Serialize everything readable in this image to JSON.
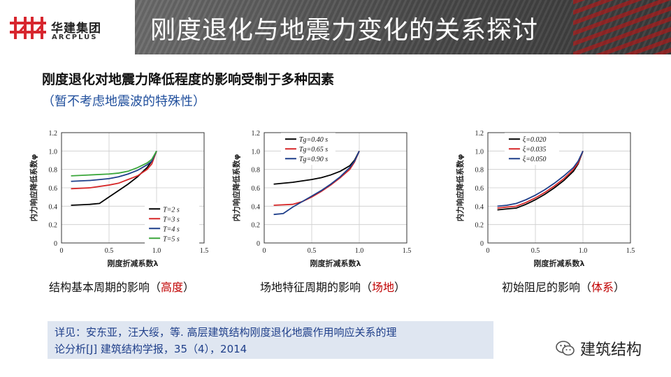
{
  "header": {
    "logo_cn": "华建集团",
    "logo_en": "ARCPLUS",
    "title": "刚度退化与地震力变化的关系探讨",
    "colors": {
      "brand_red": "#d7262e",
      "title_band": "#4a4a4a"
    }
  },
  "subtitle": {
    "main": "刚度退化对地震力降低程度的影响受制于多种因素",
    "note": "（暂不考虑地震波的特殊性）"
  },
  "captions": [
    {
      "pre": "结构基本周期的影响（",
      "hl": "高度",
      "post": "）"
    },
    {
      "pre": "场地特征周期的影响（",
      "hl": "场地",
      "post": "）"
    },
    {
      "pre": "初始阻尼的影响（",
      "hl": "体系",
      "post": "）"
    }
  ],
  "reference": {
    "line1": "详见：安东亚，汪大绥，等. 高层建筑结构刚度退化地震作用响应关系的理",
    "line2": "论分析[J] 建筑结构学报，35（4），2014"
  },
  "watermark": {
    "text": "建筑结构",
    "icon": "wechat-icon"
  },
  "chart_data": [
    {
      "type": "line",
      "xlabel": "刚度折减系数λ",
      "ylabel": "内力响应降低系数φ",
      "xlim": [
        0,
        1.5
      ],
      "ylim": [
        0,
        1.2
      ],
      "xticks": [
        "0",
        "0.5",
        "1.0",
        "1.5"
      ],
      "yticks": [
        "0",
        "0.2",
        "0.4",
        "0.6",
        "0.8",
        "1.0",
        "1.2"
      ],
      "grid": true,
      "legend_position": "lower-right",
      "series": [
        {
          "name": "T=2 s",
          "color": "#000000",
          "x": [
            0.1,
            0.3,
            0.4,
            0.5,
            0.6,
            0.7,
            0.8,
            0.9,
            0.95,
            1.0
          ],
          "y": [
            0.41,
            0.42,
            0.43,
            0.5,
            0.57,
            0.64,
            0.72,
            0.82,
            0.89,
            1.0
          ]
        },
        {
          "name": "T=3 s",
          "color": "#d62728",
          "x": [
            0.1,
            0.3,
            0.5,
            0.6,
            0.7,
            0.8,
            0.9,
            0.95,
            1.0
          ],
          "y": [
            0.59,
            0.6,
            0.63,
            0.65,
            0.69,
            0.73,
            0.8,
            0.86,
            1.0
          ]
        },
        {
          "name": "T=4 s",
          "color": "#1f3f8a",
          "x": [
            0.1,
            0.3,
            0.5,
            0.6,
            0.7,
            0.8,
            0.9,
            0.95,
            1.0
          ],
          "y": [
            0.67,
            0.68,
            0.7,
            0.72,
            0.75,
            0.79,
            0.85,
            0.89,
            1.0
          ]
        },
        {
          "name": "T=5 s",
          "color": "#3aa63a",
          "x": [
            0.1,
            0.3,
            0.5,
            0.6,
            0.7,
            0.8,
            0.9,
            0.95,
            1.0
          ],
          "y": [
            0.73,
            0.74,
            0.75,
            0.76,
            0.78,
            0.82,
            0.87,
            0.91,
            1.0
          ]
        }
      ]
    },
    {
      "type": "line",
      "xlabel": "刚度折减系数λ",
      "ylabel": "内力响应降低系数φ",
      "xlim": [
        0,
        1.5
      ],
      "ylim": [
        0,
        1.2
      ],
      "xticks": [
        "0",
        "0.5",
        "1.0",
        "1.5"
      ],
      "yticks": [
        "0",
        "0.2",
        "0.4",
        "0.6",
        "0.8",
        "1.0",
        "1.2"
      ],
      "grid": true,
      "legend_position": "top-left",
      "series": [
        {
          "name": "Tg=0.40 s",
          "color": "#000000",
          "x": [
            0.1,
            0.3,
            0.5,
            0.6,
            0.7,
            0.8,
            0.9,
            0.95,
            1.0
          ],
          "y": [
            0.64,
            0.66,
            0.69,
            0.71,
            0.74,
            0.78,
            0.84,
            0.9,
            1.0
          ]
        },
        {
          "name": "Tg=0.65 s",
          "color": "#d62728",
          "x": [
            0.1,
            0.3,
            0.4,
            0.5,
            0.6,
            0.7,
            0.8,
            0.9,
            0.95,
            1.0
          ],
          "y": [
            0.41,
            0.42,
            0.45,
            0.5,
            0.56,
            0.63,
            0.71,
            0.8,
            0.88,
            1.0
          ]
        },
        {
          "name": "Tg=0.90 s",
          "color": "#1f3f8a",
          "x": [
            0.1,
            0.2,
            0.3,
            0.4,
            0.5,
            0.6,
            0.7,
            0.8,
            0.9,
            0.95,
            1.0
          ],
          "y": [
            0.31,
            0.32,
            0.39,
            0.45,
            0.51,
            0.57,
            0.64,
            0.72,
            0.82,
            0.89,
            1.0
          ]
        }
      ]
    },
    {
      "type": "line",
      "xlabel": "刚度折减系数λ",
      "ylabel": "内力响应降低系数φ",
      "xlim": [
        0,
        1.5
      ],
      "ylim": [
        0,
        1.2
      ],
      "xticks": [
        "0",
        "0.5",
        "1.0",
        "1.5"
      ],
      "yticks": [
        "0",
        "0.2",
        "0.4",
        "0.6",
        "0.8",
        "1.0",
        "1.2"
      ],
      "grid": true,
      "legend_position": "top-left",
      "series": [
        {
          "name": "ξ=0.020",
          "color": "#000000",
          "x": [
            0.1,
            0.2,
            0.3,
            0.4,
            0.5,
            0.6,
            0.7,
            0.8,
            0.9,
            0.95,
            1.0
          ],
          "y": [
            0.36,
            0.37,
            0.38,
            0.42,
            0.47,
            0.53,
            0.6,
            0.68,
            0.78,
            0.86,
            1.0
          ]
        },
        {
          "name": "ξ=0.035",
          "color": "#d62728",
          "x": [
            0.1,
            0.2,
            0.3,
            0.4,
            0.5,
            0.6,
            0.7,
            0.8,
            0.9,
            0.95,
            1.0
          ],
          "y": [
            0.38,
            0.39,
            0.4,
            0.44,
            0.49,
            0.55,
            0.62,
            0.7,
            0.8,
            0.87,
            1.0
          ]
        },
        {
          "name": "ξ=0.050",
          "color": "#1f3f8a",
          "x": [
            0.1,
            0.2,
            0.3,
            0.4,
            0.5,
            0.6,
            0.7,
            0.8,
            0.9,
            0.95,
            1.0
          ],
          "y": [
            0.4,
            0.41,
            0.43,
            0.47,
            0.52,
            0.58,
            0.65,
            0.73,
            0.82,
            0.89,
            1.0
          ]
        }
      ]
    }
  ]
}
